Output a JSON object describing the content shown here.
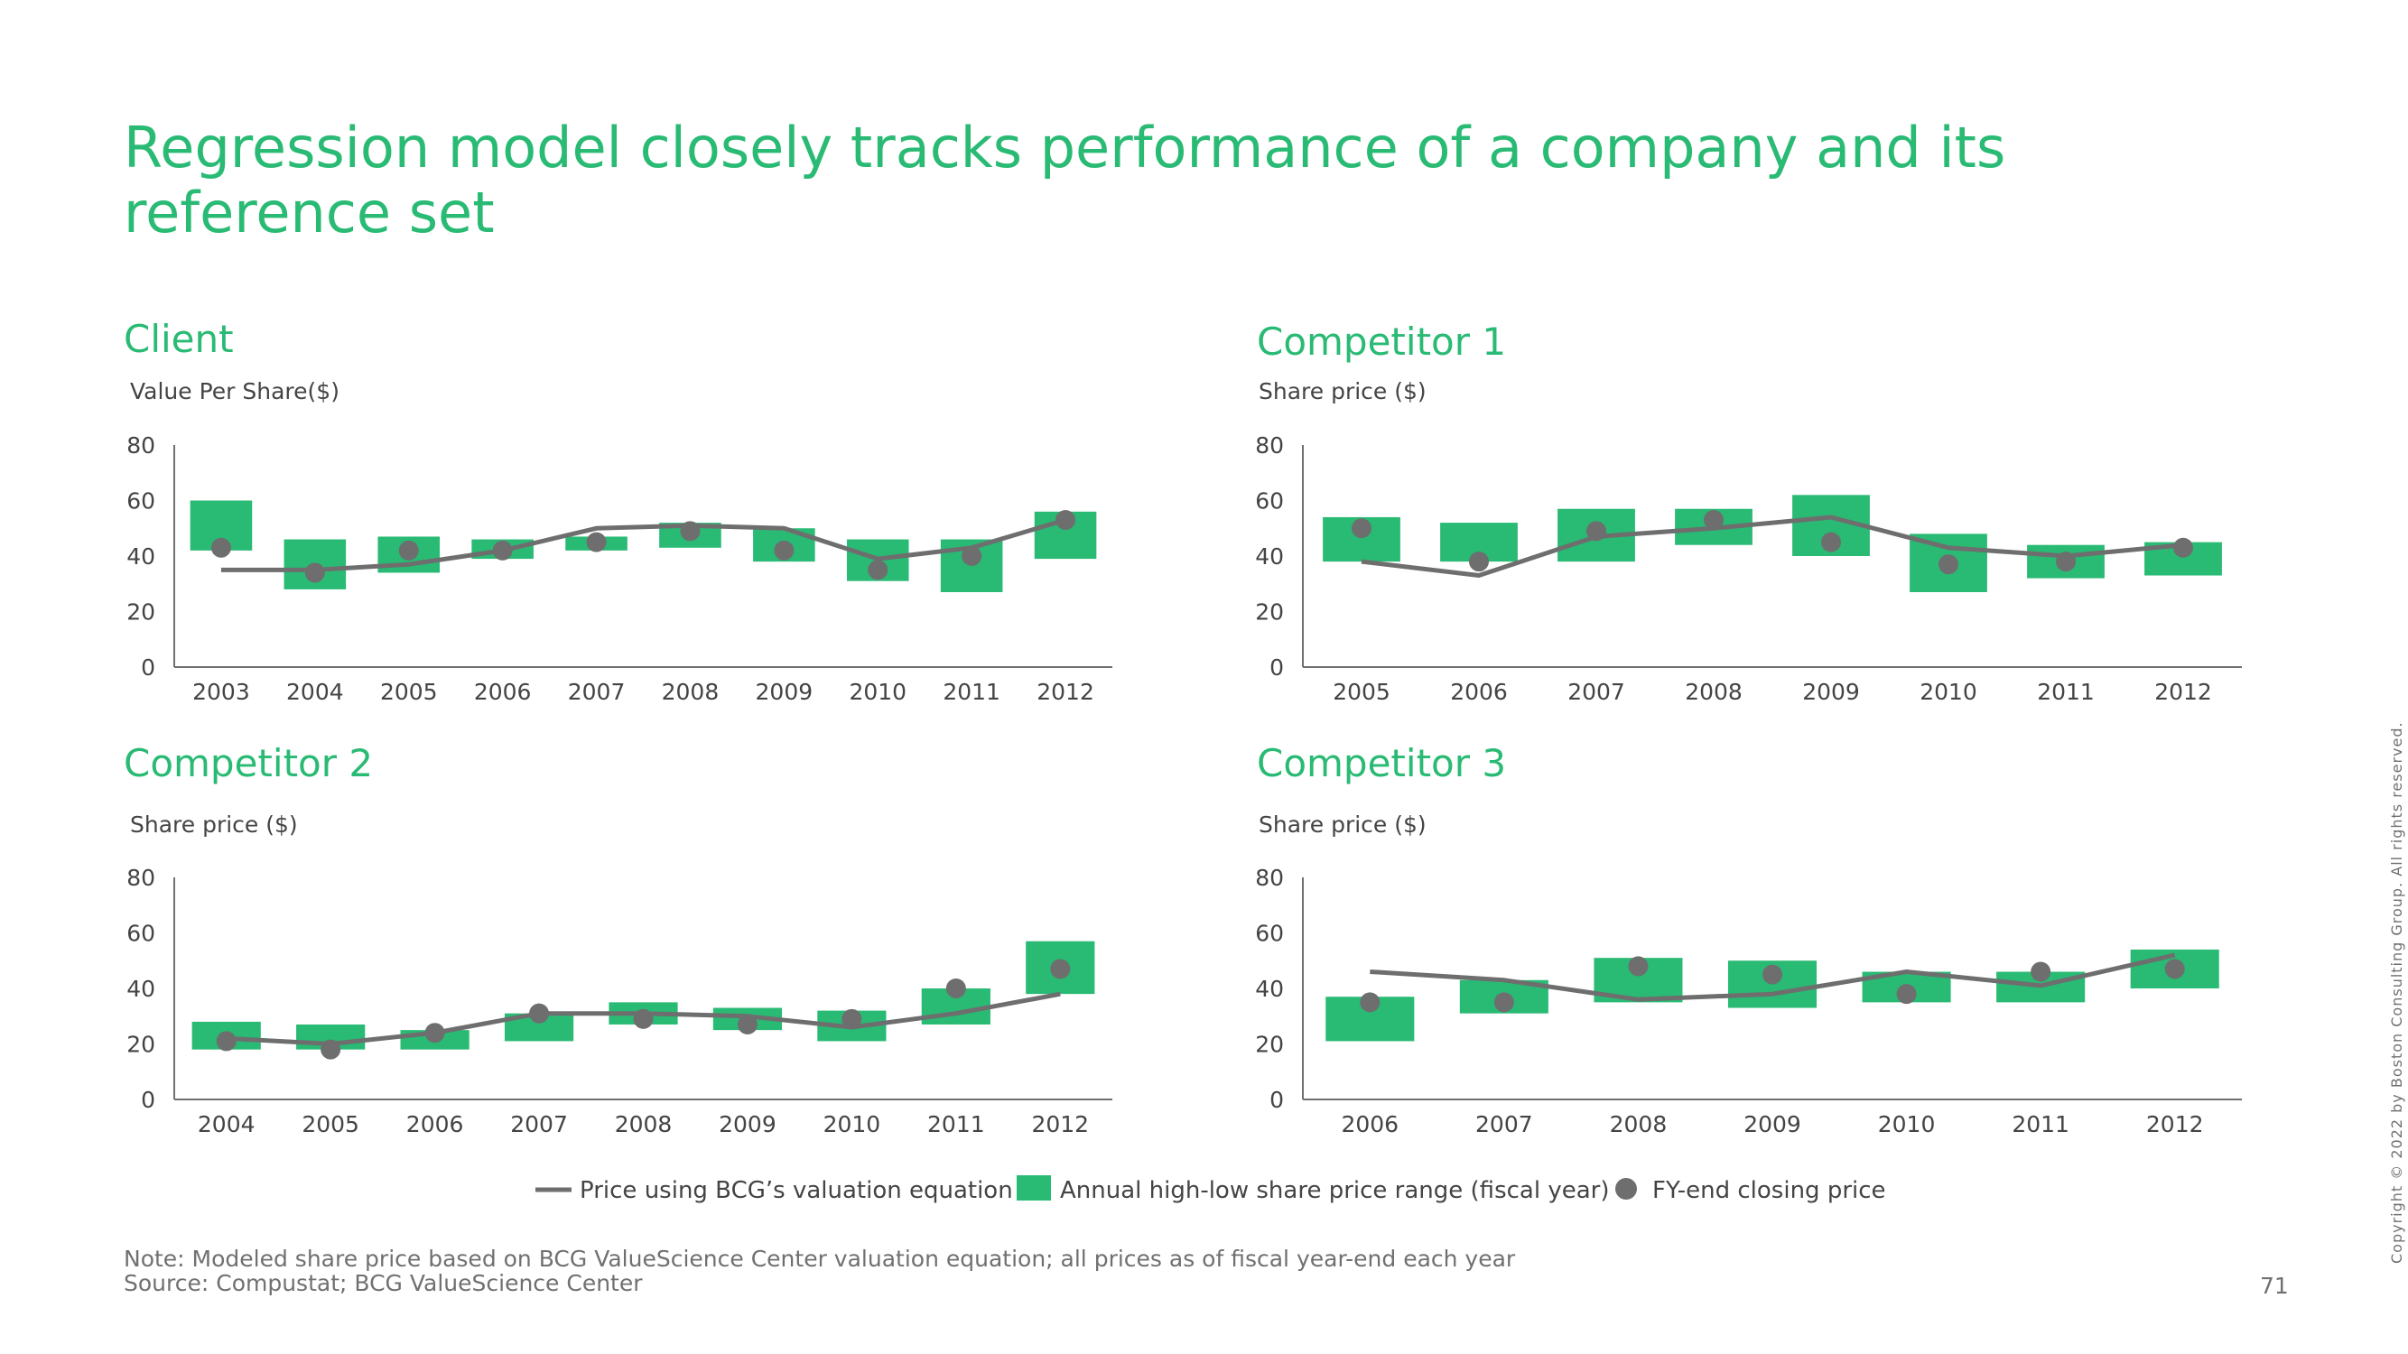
{
  "title": "Regression model closely tracks performance of a company and its reference set",
  "colors": {
    "accent": "#29ba74",
    "range": "#29ba74",
    "line": "#6e6e6e",
    "dot": "#6e6e6e",
    "axis": "#707070"
  },
  "legend": {
    "line_label": "Price using BCG’s valuation equation",
    "range_label": "Annual high-low share price range (fiscal year)",
    "dot_label": "FY-end closing price"
  },
  "note": "Note: Modeled share price based on BCG ValueScience Center valuation equation; all prices as of fiscal year-end each year",
  "source": "Source: Compustat; BCG ValueScience Center",
  "page_number": "71",
  "copyright": "Copyright © 2022 by Boston Consulting Group. All rights reserved.",
  "chart_data": [
    {
      "type": "bar",
      "title": "Client",
      "ylabel": "Value Per Share($)",
      "ylim": [
        0,
        80
      ],
      "yticks": [
        0,
        20,
        40,
        60,
        80
      ],
      "categories": [
        "2003",
        "2004",
        "2005",
        "2006",
        "2007",
        "2008",
        "2009",
        "2010",
        "2011",
        "2012"
      ],
      "series": [
        {
          "name": "Annual high-low share price range (fiscal year)",
          "type": "range",
          "high": [
            60,
            46,
            47,
            46,
            47,
            52,
            50,
            46,
            46,
            56
          ],
          "low": [
            42,
            28,
            34,
            39,
            42,
            43,
            38,
            31,
            27,
            39
          ]
        },
        {
          "name": "Price using BCG’s valuation equation",
          "type": "line",
          "values": [
            35,
            35,
            37,
            42,
            50,
            51,
            50,
            39,
            43,
            53
          ]
        },
        {
          "name": "FY-end closing price",
          "type": "scatter",
          "values": [
            43,
            34,
            42,
            42,
            45,
            49,
            42,
            35,
            40,
            53
          ]
        }
      ]
    },
    {
      "type": "bar",
      "title": "Competitor 1",
      "ylabel": "Share price ($)",
      "ylim": [
        0,
        80
      ],
      "yticks": [
        0,
        20,
        40,
        60,
        80
      ],
      "categories": [
        "2005",
        "2006",
        "2007",
        "2008",
        "2009",
        "2010",
        "2011",
        "2012"
      ],
      "series": [
        {
          "name": "Annual high-low share price range (fiscal year)",
          "type": "range",
          "high": [
            54,
            52,
            57,
            57,
            62,
            48,
            44,
            45
          ],
          "low": [
            38,
            38,
            38,
            44,
            40,
            27,
            32,
            33
          ]
        },
        {
          "name": "Price using BCG’s valuation equation",
          "type": "line",
          "values": [
            38,
            33,
            47,
            50,
            54,
            43,
            40,
            44
          ]
        },
        {
          "name": "FY-end closing price",
          "type": "scatter",
          "values": [
            50,
            38,
            49,
            53,
            45,
            37,
            38,
            43
          ]
        }
      ]
    },
    {
      "type": "bar",
      "title": "Competitor 2",
      "ylabel": "Share price ($)",
      "ylim": [
        0,
        80
      ],
      "yticks": [
        0,
        20,
        40,
        60,
        80
      ],
      "categories": [
        "2004",
        "2005",
        "2006",
        "2007",
        "2008",
        "2009",
        "2010",
        "2011",
        "2012"
      ],
      "series": [
        {
          "name": "Annual high-low share price range (fiscal year)",
          "type": "range",
          "high": [
            28,
            27,
            25,
            31,
            35,
            33,
            32,
            40,
            57
          ],
          "low": [
            18,
            18,
            18,
            21,
            27,
            25,
            21,
            27,
            38
          ]
        },
        {
          "name": "Price using BCG’s valuation equation",
          "type": "line",
          "values": [
            22,
            20,
            24,
            31,
            31,
            30,
            26,
            31,
            38
          ]
        },
        {
          "name": "FY-end closing price",
          "type": "scatter",
          "values": [
            21,
            18,
            24,
            31,
            29,
            27,
            29,
            40,
            47
          ]
        }
      ]
    },
    {
      "type": "bar",
      "title": "Competitor 3",
      "ylabel": "Share price ($)",
      "ylim": [
        0,
        80
      ],
      "yticks": [
        0,
        20,
        40,
        60,
        80
      ],
      "categories": [
        "2006",
        "2007",
        "2008",
        "2009",
        "2010",
        "2011",
        "2012"
      ],
      "series": [
        {
          "name": "Annual high-low share price range (fiscal year)",
          "type": "range",
          "high": [
            37,
            43,
            51,
            50,
            46,
            46,
            54
          ],
          "low": [
            21,
            31,
            35,
            33,
            35,
            35,
            40
          ]
        },
        {
          "name": "Price using BCG’s valuation equation",
          "type": "line",
          "values": [
            46,
            43,
            36,
            38,
            46,
            41,
            52
          ]
        },
        {
          "name": "FY-end closing price",
          "type": "scatter",
          "values": [
            35,
            35,
            48,
            45,
            38,
            46,
            47
          ]
        }
      ]
    }
  ]
}
